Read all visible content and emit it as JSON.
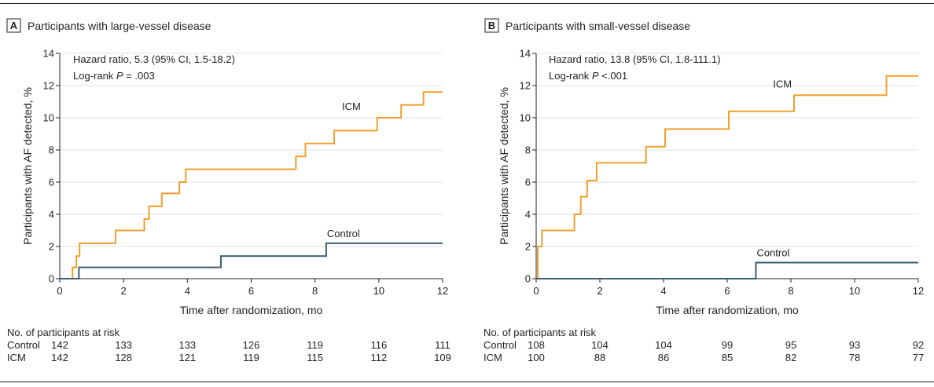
{
  "colors": {
    "icm": "#f0a02e",
    "control": "#3a5e6b",
    "axis": "#231f20",
    "grid": "#e1e1e1"
  },
  "risk_table": {
    "title": "No. of participants at risk"
  },
  "chart_data": [
    {
      "type": "line",
      "step": true,
      "panel_letter": "A",
      "title": "Participants with large-vessel disease",
      "xlabel": "Time after randomization, mo",
      "ylabel": "Participants with AF detected, %",
      "xlim": [
        0,
        12
      ],
      "ylim": [
        0,
        14
      ],
      "xticks": [
        0,
        2,
        4,
        6,
        8,
        10,
        12
      ],
      "yticks": [
        0,
        2,
        4,
        6,
        8,
        10,
        12,
        14
      ],
      "grid": true,
      "annotation_line1": "Hazard ratio, 5.3 (95% CI, 1.5-18.2)",
      "annotation_line2_prefix": "Log-rank ",
      "annotation_line2_p": "P",
      "annotation_line2_value": " = .003",
      "series": [
        {
          "name": "ICM",
          "key": "icm",
          "x": [
            0,
            0.4,
            0.52,
            0.62,
            1.75,
            2.65,
            2.8,
            3.2,
            3.75,
            3.95,
            7.4,
            7.7,
            8.6,
            9.95,
            10.7,
            11.4,
            12
          ],
          "y": [
            0,
            0.7,
            1.4,
            2.2,
            3.0,
            3.7,
            4.5,
            5.3,
            6.0,
            6.8,
            7.6,
            8.4,
            9.2,
            10.0,
            10.8,
            11.6,
            11.6
          ]
        },
        {
          "name": "Control",
          "key": "control",
          "x": [
            0,
            0.6,
            5.05,
            8.35,
            12
          ],
          "y": [
            0,
            0.7,
            1.4,
            2.2,
            2.2
          ]
        }
      ],
      "risk_rows": [
        {
          "label": "Control",
          "values": [
            "142",
            "133",
            "133",
            "126",
            "119",
            "116",
            "111"
          ]
        },
        {
          "label": "ICM",
          "values": [
            "142",
            "128",
            "121",
            "119",
            "115",
            "112",
            "109"
          ]
        }
      ]
    },
    {
      "type": "line",
      "step": true,
      "panel_letter": "B",
      "title": "Participants with small-vessel disease",
      "xlabel": "Time after randomization, mo",
      "ylabel": "Participants with AF detected, %",
      "xlim": [
        0,
        12
      ],
      "ylim": [
        0,
        14
      ],
      "xticks": [
        0,
        2,
        4,
        6,
        8,
        10,
        12
      ],
      "yticks": [
        0,
        2,
        4,
        6,
        8,
        10,
        12,
        14
      ],
      "grid": true,
      "annotation_line1": "Hazard ratio, 13.8 (95% CI, 1.8-111.1)",
      "annotation_line2_prefix": "Log-rank ",
      "annotation_line2_p": "P",
      "annotation_line2_value": " <.001",
      "series": [
        {
          "name": "ICM",
          "key": "icm",
          "x": [
            0,
            0.05,
            0.18,
            1.2,
            1.4,
            1.6,
            1.9,
            3.45,
            4.05,
            6.05,
            8.1,
            11.0,
            12
          ],
          "y": [
            0,
            2.0,
            3.0,
            4.0,
            5.1,
            6.1,
            7.2,
            8.2,
            9.3,
            10.4,
            11.4,
            12.6,
            12.6
          ]
        },
        {
          "name": "Control",
          "key": "control",
          "x": [
            0,
            6.9,
            12
          ],
          "y": [
            0,
            1.0,
            1.0
          ]
        }
      ],
      "risk_rows": [
        {
          "label": "Control",
          "values": [
            "108",
            "104",
            "104",
            "99",
            "95",
            "93",
            "92"
          ]
        },
        {
          "label": "ICM",
          "values": [
            "100",
            "88",
            "86",
            "85",
            "82",
            "78",
            "77"
          ]
        }
      ]
    }
  ]
}
